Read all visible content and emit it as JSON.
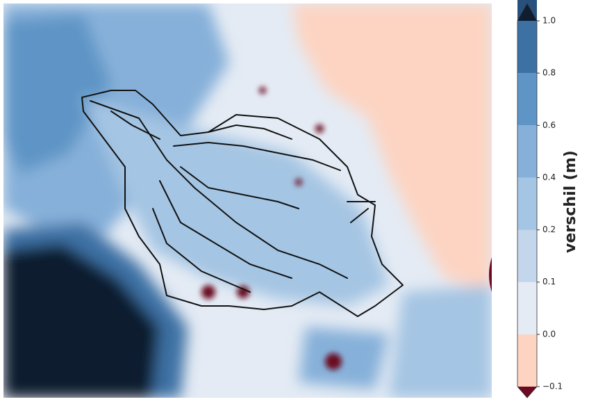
{
  "colorbar": {
    "label": "verschil (m)",
    "ticks": [
      {
        "value": -0.1,
        "label": "−0.1"
      },
      {
        "value": 0,
        "label": "0.0"
      },
      0.1,
      0.2,
      0.4,
      0.6,
      0.8,
      {
        "value": 1,
        "label": "1.0"
      }
    ],
    "colors": [
      "#fdd4c2",
      "#e4ebf4",
      "#c3d6eb",
      "#a4c5e3",
      "#86b0d9",
      "#5f95c6",
      "#3d71a4",
      "#27507c"
    ],
    "under_color": "#6b0a22",
    "over_color": "#0e1d2f"
  }
}
